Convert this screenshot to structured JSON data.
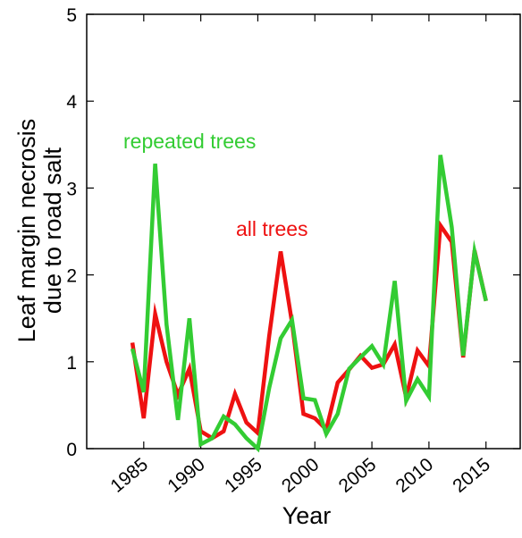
{
  "chart_data": {
    "type": "line",
    "xlabel": "Year",
    "ylabel_lines": [
      "Leaf margin necrosis",
      "due to road salt"
    ],
    "xlim": [
      1980,
      2018
    ],
    "ylim": [
      0,
      5
    ],
    "x_ticks": [
      1985,
      1990,
      1995,
      2000,
      2005,
      2010,
      2015
    ],
    "y_ticks": [
      0,
      1,
      2,
      3,
      4,
      5
    ],
    "grid": false,
    "x": [
      1984,
      1985,
      1986,
      1987,
      1988,
      1989,
      1990,
      1991,
      1992,
      1993,
      1994,
      1995,
      1996,
      1997,
      1998,
      1999,
      2000,
      2001,
      2002,
      2003,
      2004,
      2005,
      2006,
      2007,
      2008,
      2009,
      2010,
      2011,
      2012,
      2013,
      2014,
      2015
    ],
    "series": [
      {
        "name": "all trees",
        "color": "#ee1111",
        "values": [
          1.22,
          0.35,
          1.55,
          1.0,
          0.62,
          0.92,
          0.2,
          0.12,
          0.2,
          0.63,
          0.3,
          0.18,
          1.3,
          2.27,
          1.45,
          0.4,
          0.35,
          0.22,
          0.76,
          0.91,
          1.07,
          0.93,
          0.97,
          1.2,
          0.59,
          1.13,
          0.95,
          2.57,
          2.38,
          1.05,
          2.28,
          1.7
        ]
      },
      {
        "name": "repeated trees",
        "color": "#33cc33",
        "values": [
          1.15,
          0.65,
          3.28,
          1.43,
          0.33,
          1.5,
          0.05,
          0.12,
          0.37,
          0.28,
          0.12,
          0.0,
          0.7,
          1.27,
          1.48,
          0.58,
          0.56,
          0.17,
          0.4,
          0.92,
          1.05,
          1.18,
          0.97,
          1.93,
          0.55,
          0.8,
          0.6,
          3.38,
          2.55,
          1.07,
          2.27,
          1.7
        ]
      }
    ],
    "annotations": [
      "repeated trees",
      "all trees"
    ]
  }
}
